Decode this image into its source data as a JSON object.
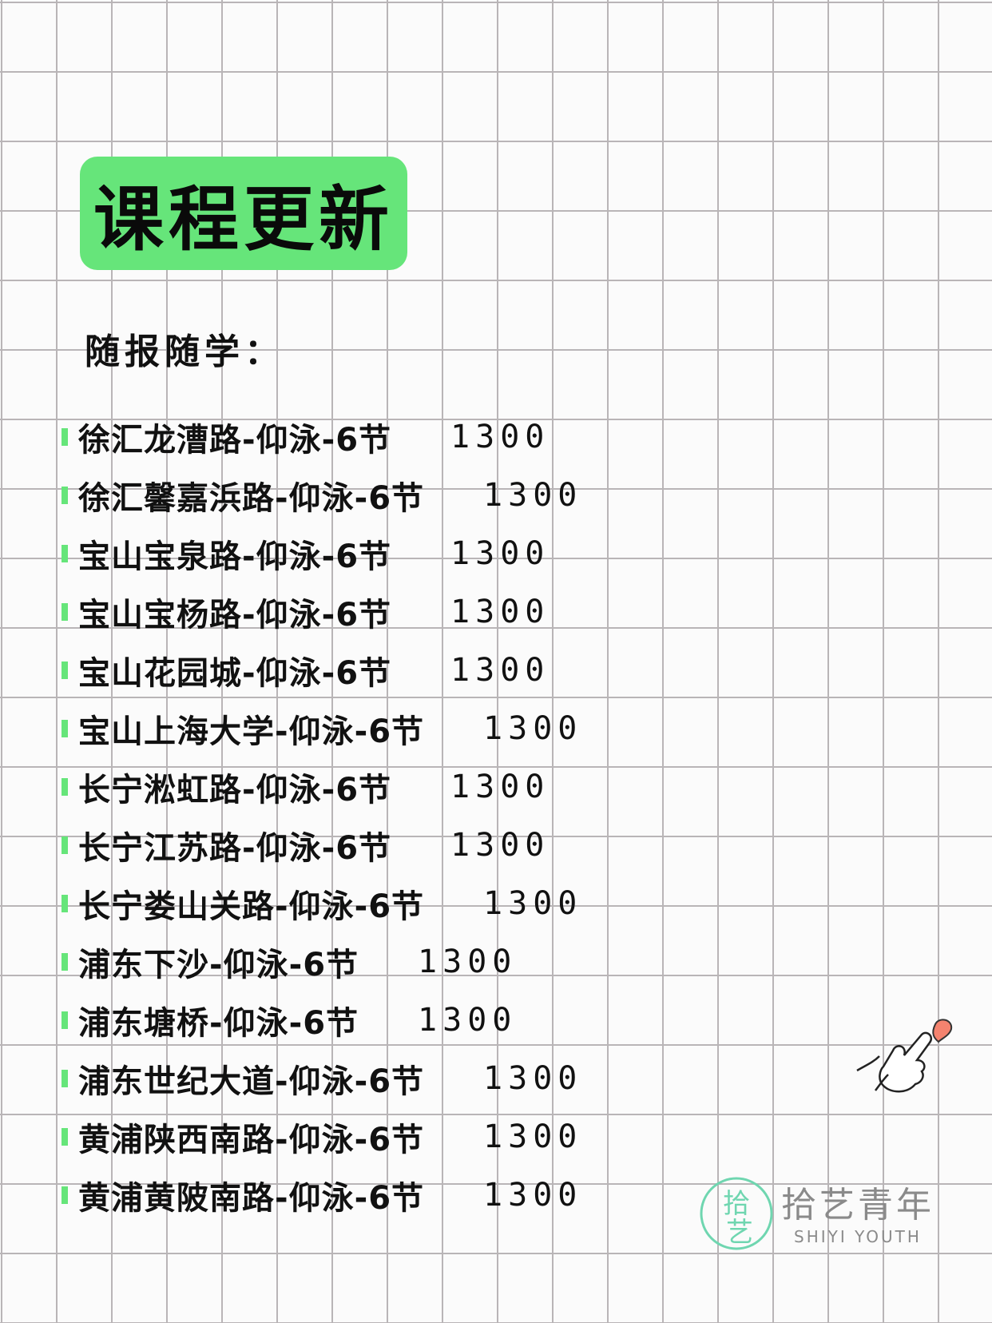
{
  "title": "课程更新",
  "subtitle": "随报随学：",
  "accent_color": "#66e57a",
  "courses": [
    {
      "name": "徐汇龙漕路-仰泳-6节",
      "price": "1300"
    },
    {
      "name": "徐汇馨嘉浜路-仰泳-6节",
      "price": "1300"
    },
    {
      "name": "宝山宝泉路-仰泳-6节",
      "price": "1300"
    },
    {
      "name": "宝山宝杨路-仰泳-6节",
      "price": "1300"
    },
    {
      "name": "宝山花园城-仰泳-6节",
      "price": "1300"
    },
    {
      "name": "宝山上海大学-仰泳-6节",
      "price": "1300"
    },
    {
      "name": "长宁淞虹路-仰泳-6节",
      "price": "1300"
    },
    {
      "name": "长宁江苏路-仰泳-6节",
      "price": "1300"
    },
    {
      "name": "长宁娄山关路-仰泳-6节",
      "price": "1300"
    },
    {
      "name": "浦东下沙-仰泳-6节",
      "price": "1300"
    },
    {
      "name": "浦东塘桥-仰泳-6节",
      "price": "1300"
    },
    {
      "name": "浦东世纪大道-仰泳-6节",
      "price": "1300"
    },
    {
      "name": "黄浦陕西南路-仰泳-6节",
      "price": "1300"
    },
    {
      "name": "黄浦黄陂南路-仰泳-6节",
      "price": "1300"
    }
  ],
  "logo": {
    "mark": "拾艺",
    "mark_small": "SHIYI",
    "name_cn": "拾艺青年",
    "name_en": "SHIYI YOUTH"
  },
  "icons": {
    "decoration": "finger-heart-icon"
  }
}
